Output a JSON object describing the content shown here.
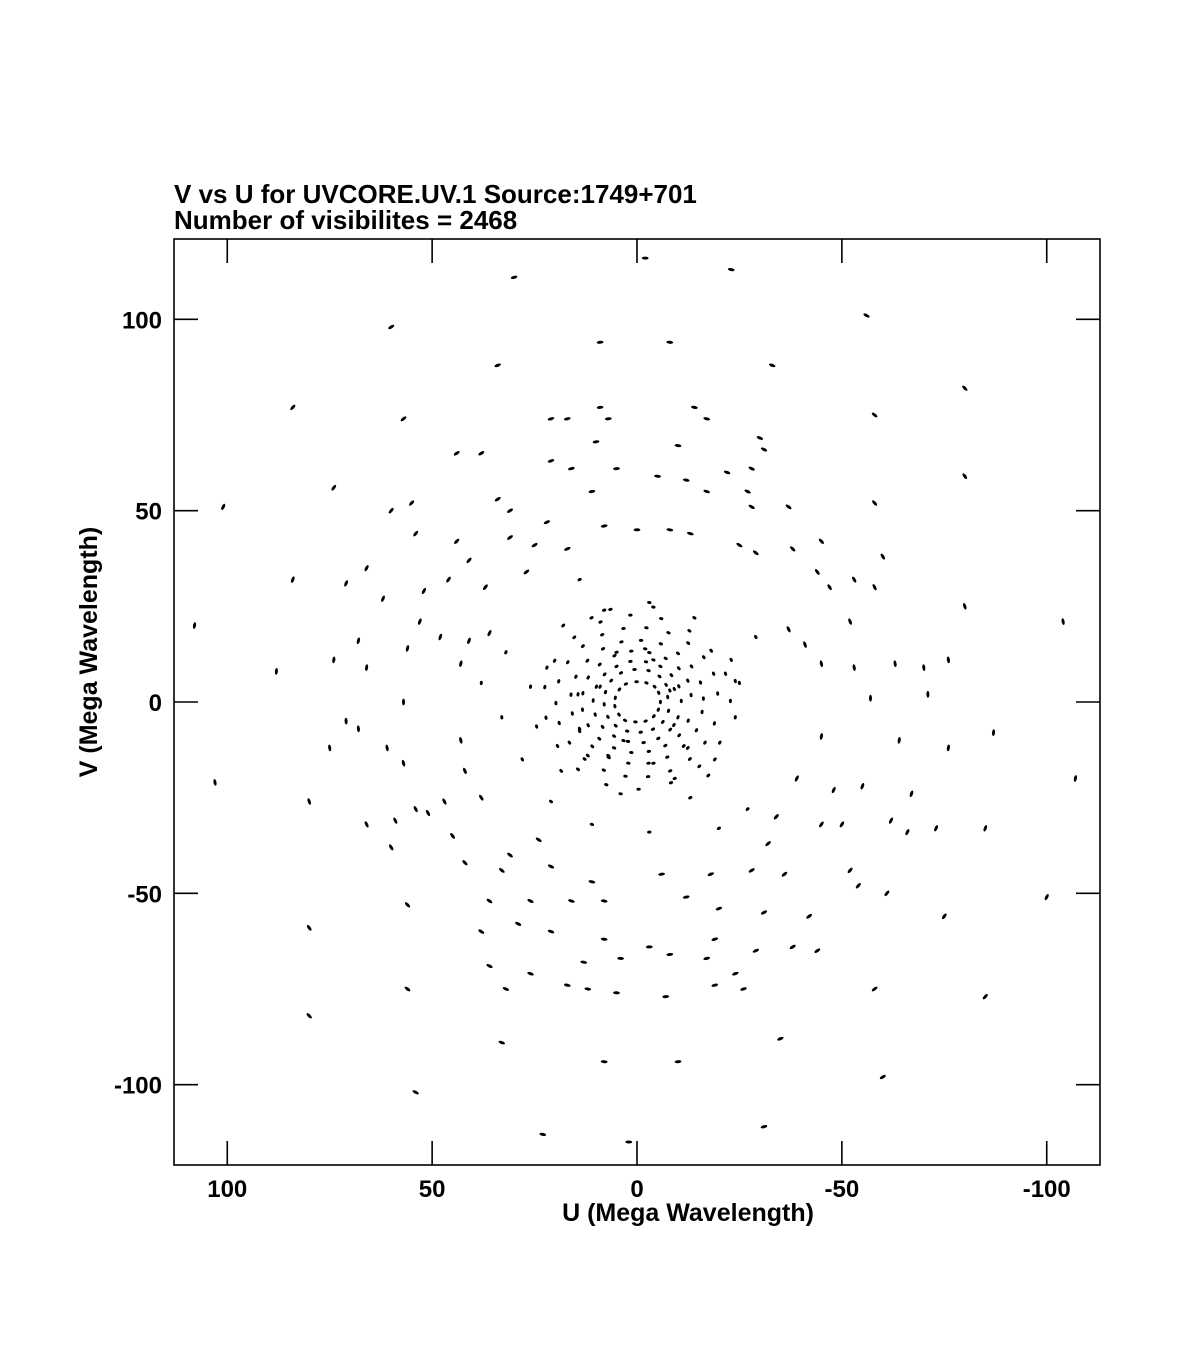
{
  "chart_data": {
    "type": "scatter",
    "title": "V vs U for UVCORE.UV.1   Source:1749+701",
    "subtitle": "Number of visibilites = 2468",
    "xlabel": "U (Mega Wavelength)",
    "ylabel": "V (Mega Wavelength)",
    "xlim": [
      113,
      -113
    ],
    "ylim": [
      -121,
      121
    ],
    "x_reversed": true,
    "grid": false,
    "xticks": [
      100,
      50,
      0,
      -50,
      -100
    ],
    "xtick_labels": [
      "100",
      "50",
      "0",
      "-50",
      "-100"
    ],
    "yticks": [
      100,
      50,
      0,
      -50,
      -100
    ],
    "ytick_labels": [
      "100",
      "50",
      "0",
      "-50",
      "-100"
    ],
    "marker_color": "#000000",
    "points": [
      [
        -2,
        116
      ],
      [
        30,
        111
      ],
      [
        -23,
        113
      ],
      [
        60,
        98
      ],
      [
        9,
        94
      ],
      [
        -8,
        94
      ],
      [
        -56,
        101
      ],
      [
        34,
        88
      ],
      [
        -33,
        88
      ],
      [
        84,
        77
      ],
      [
        57,
        74
      ],
      [
        -58,
        75
      ],
      [
        -80,
        82
      ],
      [
        21,
        74
      ],
      [
        17,
        74
      ],
      [
        9,
        77
      ],
      [
        7,
        74
      ],
      [
        -14,
        77
      ],
      [
        -17,
        74
      ],
      [
        10,
        68
      ],
      [
        -10,
        67
      ],
      [
        -30,
        69
      ],
      [
        -31,
        66
      ],
      [
        44,
        65
      ],
      [
        38,
        65
      ],
      [
        21,
        63
      ],
      [
        16,
        61
      ],
      [
        5,
        61
      ],
      [
        -5,
        59
      ],
      [
        -12,
        58
      ],
      [
        -22,
        60
      ],
      [
        -28,
        61
      ],
      [
        -80,
        59
      ],
      [
        74,
        56
      ],
      [
        101,
        51
      ],
      [
        60,
        50
      ],
      [
        55,
        52
      ],
      [
        34,
        53
      ],
      [
        31,
        50
      ],
      [
        22,
        47
      ],
      [
        11,
        55
      ],
      [
        -17,
        55
      ],
      [
        -27,
        55
      ],
      [
        -28,
        51
      ],
      [
        -37,
        51
      ],
      [
        -58,
        52
      ],
      [
        54,
        44
      ],
      [
        44,
        42
      ],
      [
        41,
        37
      ],
      [
        31,
        43
      ],
      [
        25,
        41
      ],
      [
        17,
        40
      ],
      [
        8,
        46
      ],
      [
        0,
        45
      ],
      [
        -8,
        45
      ],
      [
        -13,
        44
      ],
      [
        -25,
        41
      ],
      [
        -29,
        39
      ],
      [
        -38,
        40
      ],
      [
        -45,
        42
      ],
      [
        -60,
        38
      ],
      [
        66,
        35
      ],
      [
        84,
        32
      ],
      [
        71,
        31
      ],
      [
        62,
        27
      ],
      [
        52,
        29
      ],
      [
        46,
        32
      ],
      [
        37,
        30
      ],
      [
        27,
        34
      ],
      [
        14,
        32
      ],
      [
        -44,
        34
      ],
      [
        -47,
        30
      ],
      [
        -53,
        32
      ],
      [
        -58,
        30
      ],
      [
        -80,
        25
      ],
      [
        53,
        21
      ],
      [
        48,
        17
      ],
      [
        41,
        16
      ],
      [
        36,
        18
      ],
      [
        18,
        20
      ],
      [
        8,
        24
      ],
      [
        -3,
        26
      ],
      [
        -14,
        22
      ],
      [
        -29,
        17
      ],
      [
        -37,
        19
      ],
      [
        -41,
        15
      ],
      [
        -52,
        21
      ],
      [
        -104,
        21
      ],
      [
        108,
        20
      ],
      [
        68,
        16
      ],
      [
        74,
        11
      ],
      [
        56,
        14
      ],
      [
        43,
        10
      ],
      [
        32,
        13
      ],
      [
        22,
        9
      ],
      [
        5,
        13
      ],
      [
        -4,
        11
      ],
      [
        -23,
        11
      ],
      [
        -45,
        10
      ],
      [
        -53,
        9
      ],
      [
        -63,
        10
      ],
      [
        -70,
        9
      ],
      [
        -76,
        11
      ],
      [
        88,
        8
      ],
      [
        66,
        9
      ],
      [
        57,
        0
      ],
      [
        38,
        5
      ],
      [
        26,
        4
      ],
      [
        9,
        4
      ],
      [
        -8,
        3
      ],
      [
        -25,
        5
      ],
      [
        -57,
        1
      ],
      [
        -71,
        2
      ],
      [
        71,
        -5
      ],
      [
        68,
        -7
      ],
      [
        61,
        -12
      ],
      [
        43,
        -10
      ],
      [
        33,
        -4
      ],
      [
        14,
        -7
      ],
      [
        -9,
        -6
      ],
      [
        -24,
        -4
      ],
      [
        -45,
        -9
      ],
      [
        -64,
        -10
      ],
      [
        -76,
        -12
      ],
      [
        -87,
        -8
      ],
      [
        75,
        -12
      ],
      [
        57,
        -16
      ],
      [
        42,
        -18
      ],
      [
        28,
        -15
      ],
      [
        12,
        -14
      ],
      [
        -4,
        -16
      ],
      [
        -19,
        -15
      ],
      [
        -39,
        -20
      ],
      [
        -48,
        -23
      ],
      [
        -55,
        -22
      ],
      [
        -67,
        -24
      ],
      [
        -107,
        -20
      ],
      [
        103,
        -21
      ],
      [
        80,
        -26
      ],
      [
        54,
        -28
      ],
      [
        47,
        -26
      ],
      [
        38,
        -25
      ],
      [
        21,
        -26
      ],
      [
        4,
        -24
      ],
      [
        -13,
        -25
      ],
      [
        -27,
        -28
      ],
      [
        -34,
        -30
      ],
      [
        -50,
        -32
      ],
      [
        -62,
        -31
      ],
      [
        66,
        -32
      ],
      [
        59,
        -31
      ],
      [
        51,
        -29
      ],
      [
        45,
        -35
      ],
      [
        31,
        -40
      ],
      [
        24,
        -36
      ],
      [
        11,
        -32
      ],
      [
        -3,
        -34
      ],
      [
        -20,
        -33
      ],
      [
        -32,
        -37
      ],
      [
        -45,
        -32
      ],
      [
        -52,
        -44
      ],
      [
        -66,
        -34
      ],
      [
        -73,
        -33
      ],
      [
        -85,
        -33
      ],
      [
        60,
        -38
      ],
      [
        42,
        -42
      ],
      [
        33,
        -44
      ],
      [
        21,
        -43
      ],
      [
        11,
        -47
      ],
      [
        -6,
        -45
      ],
      [
        -18,
        -45
      ],
      [
        -28,
        -44
      ],
      [
        -36,
        -45
      ],
      [
        -54,
        -48
      ],
      [
        -61,
        -50
      ],
      [
        -100,
        -51
      ],
      [
        56,
        -53
      ],
      [
        36,
        -52
      ],
      [
        26,
        -52
      ],
      [
        16,
        -52
      ],
      [
        8,
        -52
      ],
      [
        -12,
        -51
      ],
      [
        -20,
        -54
      ],
      [
        -31,
        -55
      ],
      [
        -42,
        -56
      ],
      [
        -75,
        -56
      ],
      [
        80,
        -59
      ],
      [
        38,
        -60
      ],
      [
        29,
        -58
      ],
      [
        21,
        -60
      ],
      [
        8,
        -62
      ],
      [
        -3,
        -64
      ],
      [
        -19,
        -62
      ],
      [
        -29,
        -65
      ],
      [
        -38,
        -64
      ],
      [
        -44,
        -65
      ],
      [
        36,
        -69
      ],
      [
        26,
        -71
      ],
      [
        13,
        -68
      ],
      [
        4,
        -67
      ],
      [
        -8,
        -66
      ],
      [
        -17,
        -67
      ],
      [
        -24,
        -71
      ],
      [
        56,
        -75
      ],
      [
        32,
        -75
      ],
      [
        17,
        -74
      ],
      [
        12,
        -75
      ],
      [
        5,
        -76
      ],
      [
        -7,
        -77
      ],
      [
        -19,
        -74
      ],
      [
        -26,
        -75
      ],
      [
        -58,
        -75
      ],
      [
        -85,
        -77
      ],
      [
        80,
        -82
      ],
      [
        33,
        -89
      ],
      [
        8,
        -94
      ],
      [
        -10,
        -94
      ],
      [
        -35,
        -88
      ],
      [
        54,
        -102
      ],
      [
        -60,
        -98
      ],
      [
        23,
        -113
      ],
      [
        2,
        -115
      ],
      [
        -31,
        -111
      ],
      [
        -5.7,
        0.0
      ],
      [
        -5.3,
        2.4
      ],
      [
        -4.3,
        4.0
      ],
      [
        -2.3,
        5.0
      ],
      [
        0.1,
        5.3
      ],
      [
        2.7,
        4.7
      ],
      [
        4.3,
        3.3
      ],
      [
        5.3,
        1.1
      ],
      [
        5.4,
        -1.1
      ],
      [
        4.4,
        -3.3
      ],
      [
        2.9,
        -4.8
      ],
      [
        0.4,
        -5.2
      ],
      [
        -2.1,
        -5.0
      ],
      [
        -4.1,
        -3.7
      ],
      [
        -5.2,
        -2.0
      ],
      [
        -7.5,
        1.3
      ],
      [
        -7.1,
        4.5
      ],
      [
        -5.5,
        6.7
      ],
      [
        -2.8,
        8.2
      ],
      [
        0.6,
        8.5
      ],
      [
        3.9,
        7.6
      ],
      [
        6.3,
        5.6
      ],
      [
        7.7,
        2.6
      ],
      [
        8.0,
        -0.6
      ],
      [
        7.1,
        -3.9
      ],
      [
        5.2,
        -6.2
      ],
      [
        2.4,
        -7.6
      ],
      [
        -0.9,
        -7.9
      ],
      [
        -3.9,
        -7.1
      ],
      [
        -6.3,
        -5.2
      ],
      [
        -7.7,
        -2.3
      ],
      [
        -10.8,
        0.3
      ],
      [
        -10.2,
        4.1
      ],
      [
        -8.4,
        7.0
      ],
      [
        -5.7,
        9.3
      ],
      [
        -2.2,
        10.5
      ],
      [
        1.6,
        10.6
      ],
      [
        5.0,
        9.3
      ],
      [
        7.9,
        7.2
      ],
      [
        9.9,
        4.0
      ],
      [
        10.7,
        0.4
      ],
      [
        10.2,
        -3.3
      ],
      [
        8.4,
        -6.5
      ],
      [
        5.6,
        -8.9
      ],
      [
        2.2,
        -10.3
      ],
      [
        -1.6,
        -10.6
      ],
      [
        -5.2,
        -9.5
      ],
      [
        -8.1,
        -7.2
      ],
      [
        -10.0,
        -4.0
      ],
      [
        -13.2,
        1.8
      ],
      [
        -12.4,
        5.6
      ],
      [
        -10.2,
        8.8
      ],
      [
        -7.0,
        11.4
      ],
      [
        -3.0,
        12.9
      ],
      [
        1.4,
        13.3
      ],
      [
        5.5,
        12.1
      ],
      [
        9.1,
        9.8
      ],
      [
        11.9,
        6.4
      ],
      [
        13.2,
        2.3
      ],
      [
        13.3,
        -2.0
      ],
      [
        11.9,
        -6.1
      ],
      [
        9.2,
        -9.6
      ],
      [
        5.6,
        -12.0
      ],
      [
        1.4,
        -13.2
      ],
      [
        -2.9,
        -12.9
      ],
      [
        -6.9,
        -11.4
      ],
      [
        -10.3,
        -8.7
      ],
      [
        -12.5,
        -4.9
      ],
      [
        -16.2,
        0.9
      ],
      [
        -15.5,
        5.1
      ],
      [
        -13.3,
        9.3
      ],
      [
        -10.0,
        12.7
      ],
      [
        -5.8,
        15.2
      ],
      [
        -1.0,
        16.1
      ],
      [
        3.8,
        15.7
      ],
      [
        8.3,
        13.9
      ],
      [
        12.1,
        10.8
      ],
      [
        14.9,
        6.6
      ],
      [
        16.1,
        1.9
      ],
      [
        15.8,
        -3.0
      ],
      [
        14.0,
        -7.6
      ],
      [
        10.9,
        -11.6
      ],
      [
        6.9,
        -14.5
      ],
      [
        2.1,
        -16.0
      ],
      [
        -2.8,
        -16.0
      ],
      [
        -7.4,
        -14.4
      ],
      [
        -11.4,
        -11.5
      ],
      [
        -14.5,
        -7.4
      ],
      [
        -15.9,
        -2.6
      ],
      [
        -19.7,
        2.2
      ],
      [
        -18.7,
        7.4
      ],
      [
        -16.3,
        11.7
      ],
      [
        -12.5,
        15.4
      ],
      [
        -7.7,
        18.1
      ],
      [
        -2.3,
        19.4
      ],
      [
        3.3,
        19.2
      ],
      [
        8.5,
        17.6
      ],
      [
        13.2,
        14.6
      ],
      [
        16.9,
        10.4
      ],
      [
        19.1,
        5.4
      ],
      [
        19.8,
        -0.3
      ],
      [
        19.0,
        -5.5
      ],
      [
        16.5,
        -10.6
      ],
      [
        12.8,
        -14.9
      ],
      [
        8.1,
        -17.8
      ],
      [
        2.8,
        -19.4
      ],
      [
        -2.7,
        -19.5
      ],
      [
        -8.1,
        -18.0
      ],
      [
        -12.9,
        -14.9
      ],
      [
        -16.6,
        -10.6
      ],
      [
        -18.9,
        -5.6
      ],
      [
        -22.8,
        0.3
      ],
      [
        -21.6,
        7.4
      ],
      [
        -18.1,
        13.4
      ],
      [
        -12.8,
        18.6
      ],
      [
        -5.9,
        21.8
      ],
      [
        1.6,
        22.7
      ],
      [
        8.9,
        20.9
      ],
      [
        15.3,
        16.9
      ],
      [
        20.1,
        10.8
      ],
      [
        22.5,
        3.9
      ],
      [
        22.2,
        -4.1
      ],
      [
        19.4,
        -11.5
      ],
      [
        14.4,
        -17.6
      ],
      [
        7.5,
        -21.6
      ],
      [
        -0.4,
        -22.8
      ],
      [
        -8.3,
        -21.1
      ],
      [
        -15.2,
        -16.8
      ],
      [
        -20.2,
        -10.6
      ],
      [
        -4.0,
        24.8
      ],
      [
        6.5,
        24.2
      ],
      [
        -17.4,
        -19.2
      ],
      [
        18.5,
        -18.0
      ],
      [
        -9.2,
        -20.0
      ],
      [
        11.1,
        22.0
      ],
      [
        -24.0,
        5.5
      ],
      [
        24.5,
        -6.4
      ],
      [
        -2.0,
        13.9
      ],
      [
        3.3,
        -10.1
      ],
      [
        -9.1,
        3.4
      ],
      [
        7.0,
        -14.0
      ],
      [
        14.4,
        2.0
      ],
      [
        -12.4,
        -12.0
      ]
    ]
  }
}
